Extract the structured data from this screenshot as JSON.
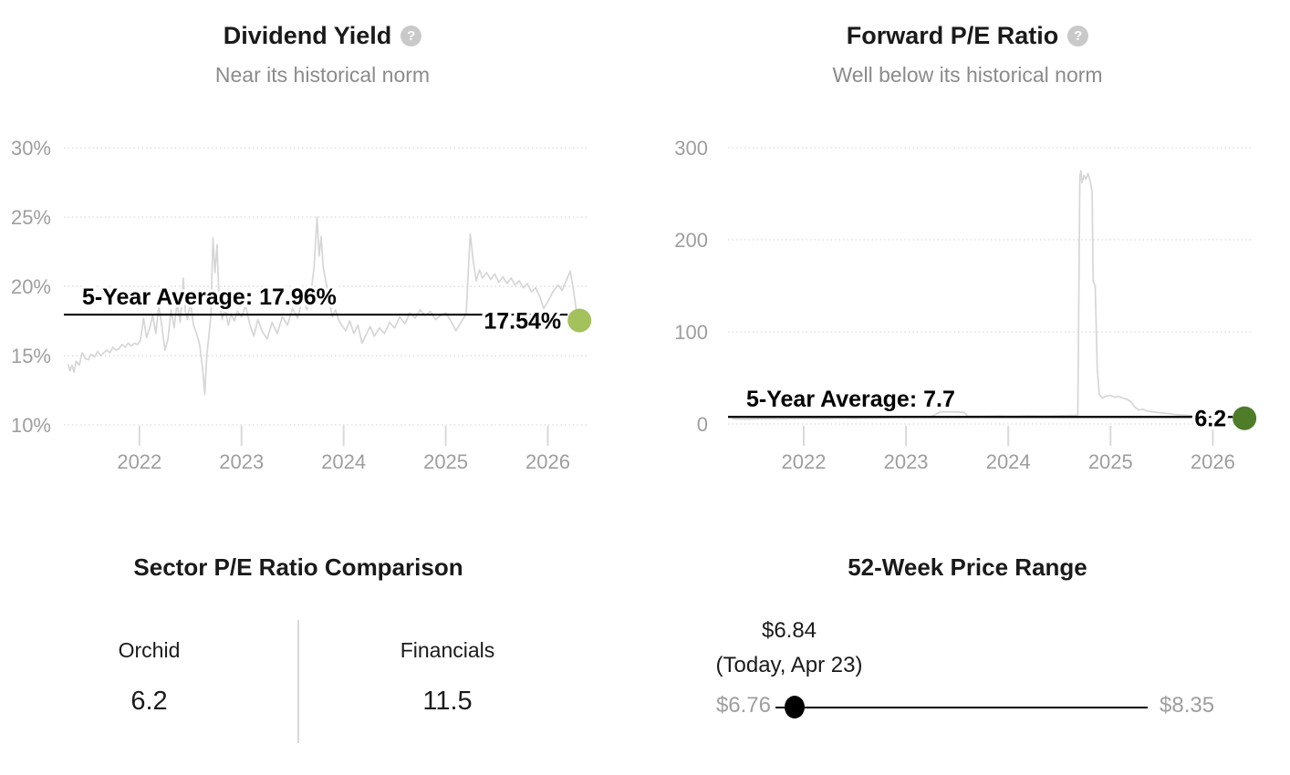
{
  "ui": {
    "help_glyph": "?"
  },
  "chart_data": [
    {
      "type": "line",
      "title": "Dividend Yield",
      "help_icon": "question-mark",
      "subtitle": "Near its historical norm",
      "unit": "%",
      "xlim": [
        2021.26,
        2026.38
      ],
      "ylim": [
        8.75,
        30.8
      ],
      "xtick_values": [
        2022,
        2023,
        2024,
        2025,
        2026
      ],
      "xtick_labels": [
        "2022",
        "2023",
        "2024",
        "2025",
        "2026"
      ],
      "ytick_values": [
        30,
        25,
        20,
        15,
        10
      ],
      "ytick_labels": [
        "30%",
        "25%",
        "20%",
        "15%",
        "10%"
      ],
      "grid": "horizontal-dotted",
      "legend": "none",
      "line_color": "#d6d6d6",
      "grid_color": "#d9d9d9",
      "axis_label_color": "#9e9e9e",
      "average_value": 17.96,
      "average_label": "5-Year Average: 17.96%",
      "current_value": 17.54,
      "current_label": "17.54%",
      "dot_color": "#a4c25c",
      "points": [
        [
          2021.3,
          14.4
        ],
        [
          2021.32,
          13.9
        ],
        [
          2021.34,
          14.3
        ],
        [
          2021.36,
          13.8
        ],
        [
          2021.38,
          14.6
        ],
        [
          2021.41,
          14.3
        ],
        [
          2021.44,
          15.2
        ],
        [
          2021.47,
          14.8
        ],
        [
          2021.5,
          14.7
        ],
        [
          2021.53,
          15.1
        ],
        [
          2021.56,
          14.9
        ],
        [
          2021.59,
          15.3
        ],
        [
          2021.62,
          15.0
        ],
        [
          2021.65,
          15.2
        ],
        [
          2021.68,
          15.4
        ],
        [
          2021.71,
          15.2
        ],
        [
          2021.74,
          15.6
        ],
        [
          2021.77,
          15.4
        ],
        [
          2021.8,
          15.5
        ],
        [
          2021.83,
          15.8
        ],
        [
          2021.86,
          15.6
        ],
        [
          2021.89,
          15.9
        ],
        [
          2021.92,
          15.7
        ],
        [
          2021.95,
          15.9
        ],
        [
          2021.98,
          15.8
        ],
        [
          2022.01,
          16.1
        ],
        [
          2022.04,
          17.7
        ],
        [
          2022.07,
          16.3
        ],
        [
          2022.1,
          17.0
        ],
        [
          2022.13,
          17.9
        ],
        [
          2022.16,
          16.6
        ],
        [
          2022.19,
          18.6
        ],
        [
          2022.22,
          17.1
        ],
        [
          2022.25,
          15.4
        ],
        [
          2022.28,
          16.2
        ],
        [
          2022.31,
          18.3
        ],
        [
          2022.34,
          17.0
        ],
        [
          2022.37,
          18.8
        ],
        [
          2022.4,
          17.4
        ],
        [
          2022.43,
          20.6
        ],
        [
          2022.45,
          18.2
        ],
        [
          2022.47,
          17.6
        ],
        [
          2022.5,
          18.9
        ],
        [
          2022.53,
          17.2
        ],
        [
          2022.56,
          16.6
        ],
        [
          2022.59,
          15.8
        ],
        [
          2022.62,
          14.0
        ],
        [
          2022.64,
          12.2
        ],
        [
          2022.66,
          15.0
        ],
        [
          2022.68,
          16.4
        ],
        [
          2022.7,
          17.9
        ],
        [
          2022.72,
          23.5
        ],
        [
          2022.74,
          21.0
        ],
        [
          2022.76,
          23.0
        ],
        [
          2022.78,
          19.0
        ],
        [
          2022.81,
          17.6
        ],
        [
          2022.84,
          18.4
        ],
        [
          2022.87,
          17.2
        ],
        [
          2022.9,
          18.0
        ],
        [
          2022.93,
          17.5
        ],
        [
          2022.96,
          18.2
        ],
        [
          2023.0,
          17.8
        ],
        [
          2023.04,
          18.6
        ],
        [
          2023.08,
          17.3
        ],
        [
          2023.12,
          16.4
        ],
        [
          2023.16,
          17.6
        ],
        [
          2023.2,
          16.8
        ],
        [
          2023.25,
          16.2
        ],
        [
          2023.3,
          17.4
        ],
        [
          2023.35,
          16.6
        ],
        [
          2023.4,
          17.8
        ],
        [
          2023.45,
          17.2
        ],
        [
          2023.5,
          18.4
        ],
        [
          2023.55,
          17.7
        ],
        [
          2023.6,
          19.2
        ],
        [
          2023.64,
          18.3
        ],
        [
          2023.68,
          19.6
        ],
        [
          2023.71,
          21.3
        ],
        [
          2023.74,
          25.0
        ],
        [
          2023.76,
          22.2
        ],
        [
          2023.78,
          23.6
        ],
        [
          2023.8,
          21.4
        ],
        [
          2023.83,
          20.2
        ],
        [
          2023.86,
          18.9
        ],
        [
          2023.89,
          17.8
        ],
        [
          2023.92,
          18.3
        ],
        [
          2023.95,
          17.6
        ],
        [
          2023.98,
          17.2
        ],
        [
          2024.02,
          16.8
        ],
        [
          2024.06,
          17.5
        ],
        [
          2024.1,
          16.6
        ],
        [
          2024.14,
          17.2
        ],
        [
          2024.18,
          15.9
        ],
        [
          2024.22,
          16.5
        ],
        [
          2024.26,
          17.1
        ],
        [
          2024.3,
          16.4
        ],
        [
          2024.35,
          17.0
        ],
        [
          2024.4,
          16.6
        ],
        [
          2024.45,
          17.4
        ],
        [
          2024.5,
          17.0
        ],
        [
          2024.55,
          17.8
        ],
        [
          2024.6,
          17.3
        ],
        [
          2024.65,
          18.1
        ],
        [
          2024.7,
          17.7
        ],
        [
          2024.75,
          18.3
        ],
        [
          2024.8,
          17.9
        ],
        [
          2024.85,
          18.2
        ],
        [
          2024.9,
          17.6
        ],
        [
          2024.95,
          17.9
        ],
        [
          2025.0,
          18.1
        ],
        [
          2025.05,
          17.5
        ],
        [
          2025.1,
          16.8
        ],
        [
          2025.15,
          17.4
        ],
        [
          2025.2,
          18.0
        ],
        [
          2025.24,
          23.8
        ],
        [
          2025.27,
          21.8
        ],
        [
          2025.3,
          20.4
        ],
        [
          2025.33,
          21.2
        ],
        [
          2025.36,
          20.6
        ],
        [
          2025.4,
          21.0
        ],
        [
          2025.44,
          20.5
        ],
        [
          2025.48,
          20.9
        ],
        [
          2025.52,
          20.3
        ],
        [
          2025.56,
          20.7
        ],
        [
          2025.6,
          20.2
        ],
        [
          2025.64,
          20.6
        ],
        [
          2025.68,
          20.1
        ],
        [
          2025.72,
          20.4
        ],
        [
          2025.76,
          19.9
        ],
        [
          2025.8,
          20.2
        ],
        [
          2025.84,
          19.6
        ],
        [
          2025.88,
          19.9
        ],
        [
          2025.92,
          19.3
        ],
        [
          2025.96,
          18.4
        ],
        [
          2026.0,
          18.9
        ],
        [
          2026.05,
          19.6
        ],
        [
          2026.1,
          20.1
        ],
        [
          2026.14,
          19.7
        ],
        [
          2026.18,
          20.4
        ],
        [
          2026.22,
          21.1
        ],
        [
          2026.25,
          19.8
        ],
        [
          2026.28,
          18.2
        ],
        [
          2026.31,
          17.54
        ]
      ]
    },
    {
      "type": "line",
      "title": "Forward P/E Ratio",
      "help_icon": "question-mark",
      "subtitle": "Well below its historical norm",
      "unit": "",
      "xlim": [
        2021.26,
        2026.38
      ],
      "ylim": [
        -19.8,
        311.9
      ],
      "xtick_values": [
        2022,
        2023,
        2024,
        2025,
        2026
      ],
      "xtick_labels": [
        "2022",
        "2023",
        "2024",
        "2025",
        "2026"
      ],
      "ytick_values": [
        300,
        200,
        100,
        0
      ],
      "ytick_labels": [
        "300",
        "200",
        "100",
        "0"
      ],
      "grid": "horizontal-dotted",
      "legend": "none",
      "line_color": "#d6d6d6",
      "grid_color": "#d9d9d9",
      "axis_label_color": "#9e9e9e",
      "average_value": 7.7,
      "average_label": "5-Year Average: 7.7",
      "current_value": 6.2,
      "current_label": "6.2",
      "dot_color": "#4e7c28",
      "points": [
        [
          2021.3,
          5.5
        ],
        [
          2021.45,
          5.2
        ],
        [
          2021.6,
          5.8
        ],
        [
          2021.75,
          5.4
        ],
        [
          2021.9,
          5.9
        ],
        [
          2022.05,
          6.2
        ],
        [
          2022.2,
          5.8
        ],
        [
          2022.35,
          6.4
        ],
        [
          2022.5,
          6.1
        ],
        [
          2022.65,
          6.6
        ],
        [
          2022.8,
          6.9
        ],
        [
          2022.95,
          7.4
        ],
        [
          2023.1,
          7.8
        ],
        [
          2023.25,
          8.2
        ],
        [
          2023.33,
          12.8
        ],
        [
          2023.4,
          13.2
        ],
        [
          2023.5,
          13.0
        ],
        [
          2023.57,
          12.6
        ],
        [
          2023.6,
          8.6
        ],
        [
          2023.75,
          8.4
        ],
        [
          2023.9,
          8.8
        ],
        [
          2024.05,
          8.5
        ],
        [
          2024.2,
          8.9
        ],
        [
          2024.35,
          8.6
        ],
        [
          2024.5,
          9.0
        ],
        [
          2024.62,
          9.4
        ],
        [
          2024.68,
          9.6
        ],
        [
          2024.7,
          268
        ],
        [
          2024.71,
          275
        ],
        [
          2024.72,
          262
        ],
        [
          2024.74,
          270
        ],
        [
          2024.76,
          266
        ],
        [
          2024.78,
          272
        ],
        [
          2024.8,
          264
        ],
        [
          2024.82,
          252
        ],
        [
          2024.83,
          155
        ],
        [
          2024.85,
          150
        ],
        [
          2024.87,
          60
        ],
        [
          2024.89,
          32
        ],
        [
          2024.92,
          28
        ],
        [
          2024.95,
          30
        ],
        [
          2025.0,
          31
        ],
        [
          2025.04,
          29
        ],
        [
          2025.08,
          30
        ],
        [
          2025.12,
          28
        ],
        [
          2025.16,
          27
        ],
        [
          2025.2,
          24
        ],
        [
          2025.24,
          18
        ],
        [
          2025.28,
          15
        ],
        [
          2025.32,
          16
        ],
        [
          2025.36,
          14
        ],
        [
          2025.42,
          13
        ],
        [
          2025.5,
          12
        ],
        [
          2025.58,
          11
        ],
        [
          2025.66,
          10
        ],
        [
          2025.74,
          9.5
        ],
        [
          2025.82,
          8.8
        ],
        [
          2025.9,
          8.2
        ],
        [
          2026.0,
          7.6
        ],
        [
          2026.08,
          7.2
        ],
        [
          2026.16,
          6.8
        ],
        [
          2026.24,
          6.5
        ],
        [
          2026.31,
          6.2
        ]
      ]
    }
  ],
  "sector_comparison": {
    "title": "Sector P/E Ratio Comparison",
    "columns": [
      {
        "label": "Orchid",
        "value": "6.2"
      },
      {
        "label": "Financials",
        "value": "11.5"
      }
    ]
  },
  "price_range": {
    "title": "52-Week Price Range",
    "current_price_label": "$6.84",
    "current_date_label": "(Today, Apr 23)",
    "low_label": "$6.76",
    "high_label": "$8.35",
    "low_value": 6.76,
    "high_value": 8.35,
    "current_value": 6.84
  }
}
